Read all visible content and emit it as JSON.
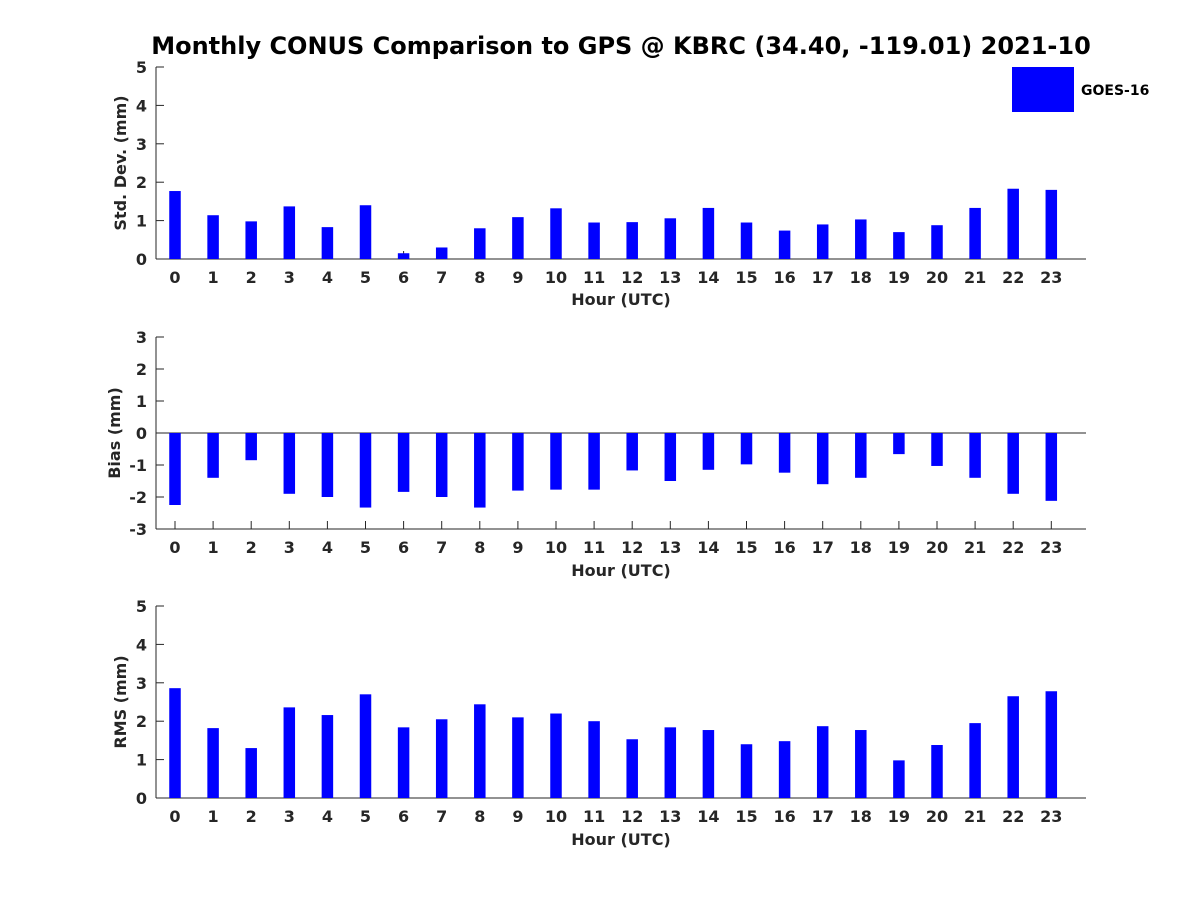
{
  "title": "Monthly CONUS Comparison to GPS @ KBRC (34.40, -119.01) 2021-10",
  "bar_color": "#0000ff",
  "legend": {
    "label": "GOES-16",
    "position": "top-right"
  },
  "chart_data": [
    {
      "type": "bar",
      "xlabel": "Hour (UTC)",
      "ylabel": "Std. Dev. (mm)",
      "ylim": [
        0,
        5
      ],
      "yticks": [
        0,
        1,
        2,
        3,
        4,
        5
      ],
      "grid": false,
      "categories": [
        "0",
        "1",
        "2",
        "3",
        "4",
        "5",
        "6",
        "7",
        "8",
        "9",
        "10",
        "11",
        "12",
        "13",
        "14",
        "15",
        "16",
        "17",
        "18",
        "19",
        "20",
        "21",
        "22",
        "23"
      ],
      "series": [
        {
          "name": "GOES-16",
          "values": [
            1.77,
            1.14,
            0.98,
            1.37,
            0.83,
            1.4,
            0.15,
            0.3,
            0.8,
            1.09,
            1.32,
            0.95,
            0.96,
            1.06,
            1.33,
            0.95,
            0.74,
            0.9,
            1.03,
            0.7,
            0.88,
            1.33,
            1.83,
            1.8
          ]
        }
      ]
    },
    {
      "type": "bar",
      "xlabel": "Hour (UTC)",
      "ylabel": "Bias (mm)",
      "ylim": [
        -3,
        3
      ],
      "yticks": [
        -3,
        -2,
        -1,
        0,
        1,
        2,
        3
      ],
      "grid": false,
      "categories": [
        "0",
        "1",
        "2",
        "3",
        "4",
        "5",
        "6",
        "7",
        "8",
        "9",
        "10",
        "11",
        "12",
        "13",
        "14",
        "15",
        "16",
        "17",
        "18",
        "19",
        "20",
        "21",
        "22",
        "23"
      ],
      "series": [
        {
          "name": "GOES-16",
          "values": [
            -2.25,
            -1.4,
            -0.85,
            -1.9,
            -2.0,
            -2.33,
            -1.84,
            -2.0,
            -2.33,
            -1.8,
            -1.77,
            -1.77,
            -1.17,
            -1.5,
            -1.15,
            -0.98,
            -1.24,
            -1.6,
            -1.4,
            -0.66,
            -1.03,
            -1.4,
            -1.9,
            -2.12
          ]
        }
      ]
    },
    {
      "type": "bar",
      "xlabel": "Hour (UTC)",
      "ylabel": "RMS (mm)",
      "ylim": [
        0,
        5
      ],
      "yticks": [
        0,
        1,
        2,
        3,
        4,
        5
      ],
      "grid": false,
      "categories": [
        "0",
        "1",
        "2",
        "3",
        "4",
        "5",
        "6",
        "7",
        "8",
        "9",
        "10",
        "11",
        "12",
        "13",
        "14",
        "15",
        "16",
        "17",
        "18",
        "19",
        "20",
        "21",
        "22",
        "23"
      ],
      "series": [
        {
          "name": "GOES-16",
          "values": [
            2.86,
            1.82,
            1.3,
            2.36,
            2.16,
            2.7,
            1.84,
            2.05,
            2.44,
            2.1,
            2.2,
            2.0,
            1.53,
            1.84,
            1.77,
            1.4,
            1.48,
            1.87,
            1.77,
            0.98,
            1.38,
            1.95,
            2.65,
            2.78
          ]
        }
      ]
    }
  ]
}
